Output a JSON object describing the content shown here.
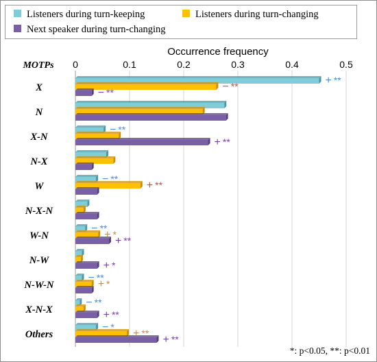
{
  "colors": {
    "series": [
      "#7ECDD9",
      "#FFC000",
      "#7B5FA6"
    ],
    "series_side": [
      "#4B97A6",
      "#C98F00",
      "#54407A"
    ],
    "sig_blue": "#4E8CD6",
    "sig_red": "#D24A4A",
    "sig_orange": "#F0821E",
    "sig_purple": "#7A3FA8"
  },
  "legend": {
    "item0": "Listeners during turn-keeping",
    "item1": "Listeners during turn-changing",
    "item2": "Next speaker during turn-changing"
  },
  "footnote": "*: p<0.05, **: p<0.01",
  "chart_data": {
    "type": "bar",
    "orientation": "horizontal",
    "title": "Occurrence frequency",
    "category_axis_title": "MOTPs",
    "categories": [
      "X",
      "N",
      "X-N",
      "N-X",
      "W",
      "N-X-N",
      "W-N",
      "N-W",
      "N-W-N",
      "X-N-X",
      "Others"
    ],
    "xlim": [
      0,
      0.5
    ],
    "xticks": [
      "0",
      "0.1",
      "0.2",
      "0.3",
      "0.4",
      "0.5"
    ],
    "xtick_values": [
      0,
      0.1,
      0.2,
      0.3,
      0.4,
      0.5
    ],
    "grid": "vertical",
    "legend_position": "top",
    "series": [
      {
        "name": "Listeners during turn-keeping",
        "values": [
          0.45,
          0.275,
          0.052,
          0.057,
          0.038,
          0.022,
          0.018,
          0.012,
          0.012,
          0.008,
          0.038
        ],
        "annotations": [
          {
            "sign": "+",
            "stars": "**",
            "color": "sig_blue"
          },
          null,
          {
            "sign": "−",
            "stars": "**",
            "color": "sig_blue"
          },
          null,
          {
            "sign": "−",
            "stars": "**",
            "color": "sig_blue"
          },
          null,
          {
            "sign": "−",
            "stars": "**",
            "color": "sig_blue"
          },
          null,
          {
            "sign": "−",
            "stars": "**",
            "color": "sig_blue"
          },
          {
            "sign": "−",
            "stars": "**",
            "color": "sig_blue"
          },
          {
            "sign": "−",
            "stars": "*",
            "color": "sig_blue"
          }
        ]
      },
      {
        "name": "Listeners during turn-changing",
        "values": [
          0.26,
          0.235,
          0.08,
          0.07,
          0.12,
          0.015,
          0.042,
          0.01,
          0.03,
          0.015,
          0.095
        ],
        "annotations": [
          {
            "sign": "−",
            "stars": "**",
            "color": "sig_red"
          },
          null,
          null,
          null,
          {
            "sign": "+",
            "stars": "**",
            "color": "sig_red"
          },
          null,
          {
            "sign": "+",
            "stars": "*",
            "color": "sig_orange"
          },
          null,
          {
            "sign": "+",
            "stars": "*",
            "color": "sig_orange"
          },
          null,
          {
            "sign": "+",
            "stars": "**",
            "color": "sig_orange"
          }
        ]
      },
      {
        "name": "Next speaker during turn-changing",
        "values": [
          0.03,
          0.278,
          0.245,
          0.03,
          0.04,
          0.04,
          0.062,
          0.04,
          0.03,
          0.04,
          0.15
        ],
        "annotations": [
          {
            "sign": "−",
            "stars": "**",
            "color": "sig_purple"
          },
          null,
          {
            "sign": "+",
            "stars": "**",
            "color": "sig_purple"
          },
          null,
          null,
          null,
          {
            "sign": "+",
            "stars": "**",
            "color": "sig_purple"
          },
          {
            "sign": "+",
            "stars": "*",
            "color": "sig_purple"
          },
          null,
          {
            "sign": "+",
            "stars": "**",
            "color": "sig_purple"
          },
          {
            "sign": "+",
            "stars": "**",
            "color": "sig_purple"
          }
        ]
      }
    ]
  }
}
